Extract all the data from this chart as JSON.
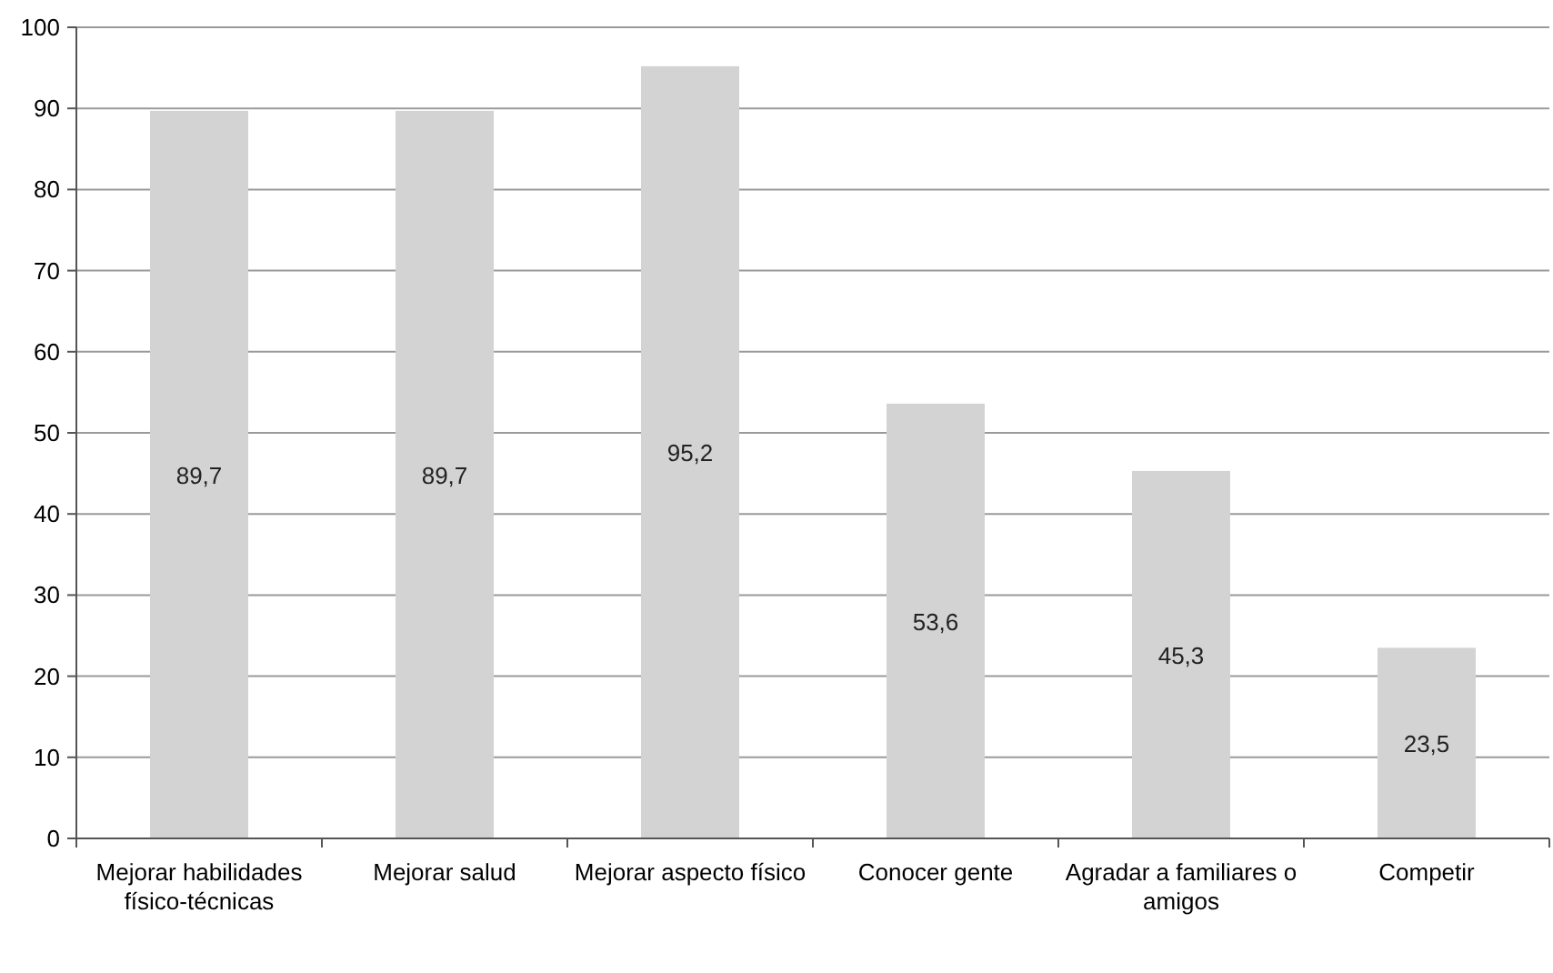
{
  "chart_data": {
    "type": "bar",
    "categories": [
      "Mejorar habilidades físico-técnicas",
      "Mejorar salud",
      "Mejorar aspecto físico",
      "Conocer gente",
      "Agradar a familiares o amigos",
      "Competir"
    ],
    "values": [
      89.7,
      89.7,
      95.2,
      53.6,
      45.3,
      23.5
    ],
    "value_labels": [
      "89,7",
      "89,7",
      "95,2",
      "53,6",
      "45,3",
      "23,5"
    ],
    "color": "#d3d3d3",
    "ylim": [
      0,
      100
    ],
    "yticks": [
      0,
      10,
      20,
      30,
      40,
      50,
      60,
      70,
      80,
      90,
      100
    ],
    "grid": "y"
  }
}
